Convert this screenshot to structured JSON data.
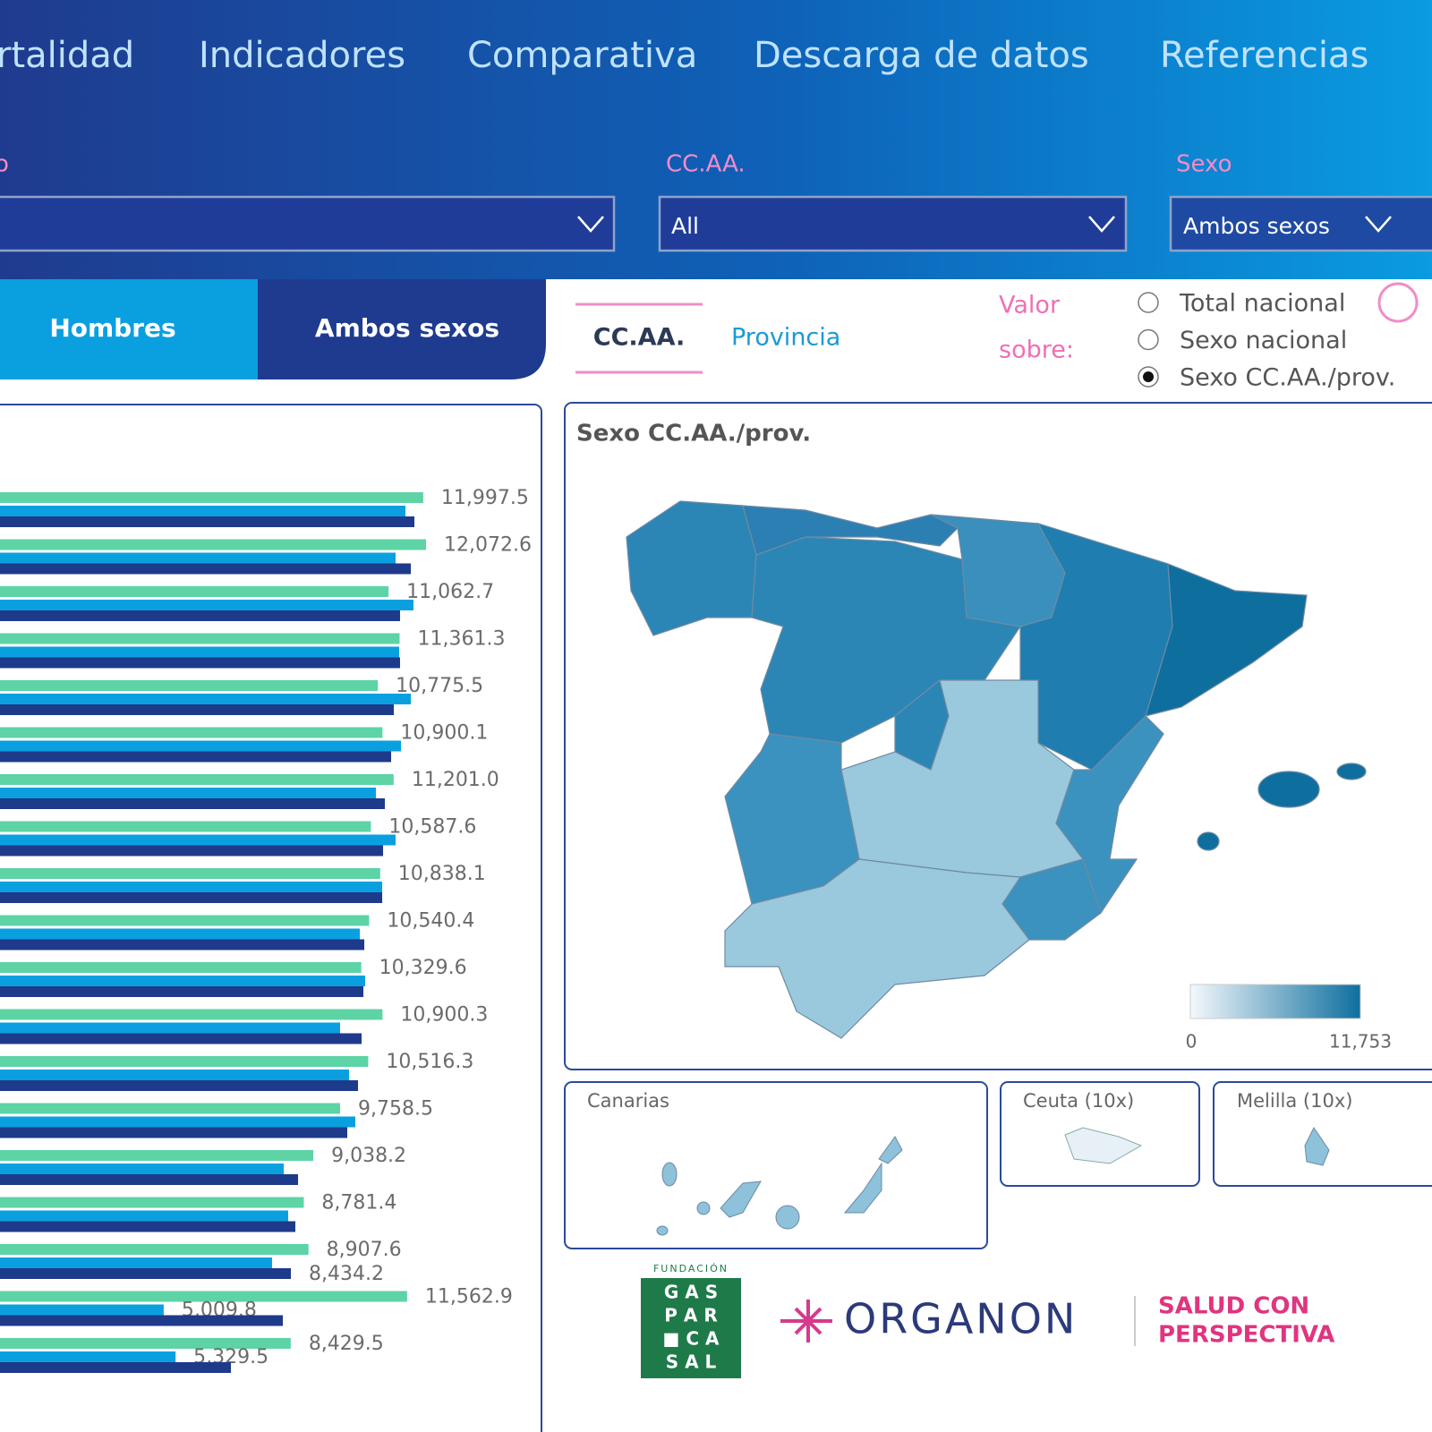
{
  "nav": {
    "items": [
      "rtalidad",
      "Indicadores",
      "Comparativa",
      "Descarga de datos",
      "Referencias"
    ]
  },
  "filters": [
    {
      "label": "o"
    },
    {
      "label": "CC.AA.",
      "value": "All"
    },
    {
      "label": "Sexo",
      "value": "Ambos sexos"
    }
  ],
  "sex_tabs": [
    "Hombres",
    "Ambos sexos"
  ],
  "chart_data": {
    "type": "bar",
    "orientation": "horizontal",
    "series": [
      {
        "color": "#5dd3a6",
        "values": [
          11997.5,
          12072.6,
          11062.7,
          11361.3,
          10775.5,
          10900.1,
          11201.0,
          10587.6,
          10838.1,
          10540.4,
          10329.6,
          10900.3,
          10516.3,
          9758.5,
          9038.2,
          8781.4,
          8907.6,
          11562.9,
          8429.5
        ],
        "value_labels": [
          "11,997.5",
          "12,072.6",
          "11,062.7",
          "11,361.3",
          "10,775.5",
          "10,900.1",
          "11,201.0",
          "10,587.6",
          "10,838.1",
          "10,540.4",
          "10,329.6",
          "10,900.3",
          "10,516.3",
          "9,758.5",
          "9,038.2",
          "8,781.4",
          "8,907.6",
          "11,562.9",
          "8,429.5"
        ]
      },
      {
        "color": "#0aa0e0",
        "values": [
          11518,
          11253,
          11735,
          11349,
          11663,
          11398,
          10723,
          11253,
          10892,
          10289,
          10434,
          9759,
          10000,
          10169,
          8241,
          8361,
          7928,
          5009.8,
          5329.5
        ],
        "value_labels": [
          null,
          null,
          null,
          null,
          null,
          null,
          null,
          null,
          null,
          null,
          null,
          null,
          null,
          null,
          null,
          null,
          null,
          "5,009.8",
          "5,329.5"
        ]
      },
      {
        "color": "#1e3a8a",
        "values": [
          11759,
          11663,
          11373,
          11373,
          11205,
          11133,
          10964,
          10916,
          10892,
          10410,
          10386,
          10337,
          10241,
          9952,
          8627,
          8554,
          8434.2,
          8217,
          6819
        ],
        "value_labels": [
          null,
          null,
          null,
          null,
          null,
          null,
          null,
          null,
          null,
          null,
          null,
          null,
          null,
          null,
          null,
          null,
          "8,434.2",
          null,
          null
        ]
      }
    ]
  },
  "geo_tabs": [
    "CC.AA.",
    "Provincia"
  ],
  "value_on": {
    "label": [
      "Valor",
      "sobre:"
    ],
    "options": [
      "Total nacional",
      "Sexo nacional",
      "Sexo CC.AA./prov."
    ],
    "selected": 2
  },
  "map": {
    "title": "Sexo CC.AA./prov.",
    "legend_labels": [
      "0",
      "11,753"
    ],
    "insets": [
      "Canarias",
      "Ceuta (10x)",
      "Melilla (10x)"
    ]
  },
  "logos": {
    "fundacion": "FUNDACIÓN",
    "grid": [
      "G A S",
      "P A R",
      "■ C A",
      "S A L"
    ],
    "organon": "ORGANON",
    "salud": [
      "SALUD CON",
      "PERSPECTIVA"
    ]
  }
}
